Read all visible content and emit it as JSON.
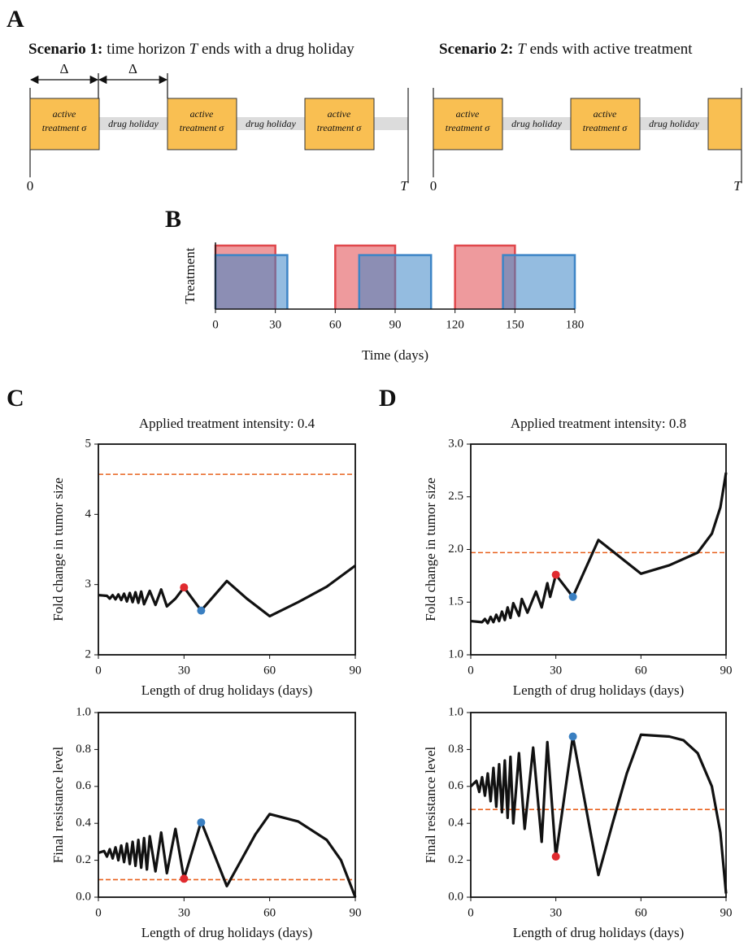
{
  "panel_labels": [
    "A",
    "B",
    "C",
    "D"
  ],
  "panel_a": {
    "scenario1": {
      "label": "Scenario 1:",
      "text": [
        "time horizon ",
        "T",
        " ends with a drug holiday"
      ]
    },
    "scenario2": {
      "label": "Scenario 2:",
      "text": [
        "T",
        " ends with active treatment"
      ]
    },
    "delta": "Δ",
    "box_lines": [
      "active",
      "treatment σ"
    ],
    "holiday": "drug holiday",
    "origin": "0",
    "horizon": "T"
  },
  "chart_data": [
    {
      "type": "interval",
      "ylabel": "Treatment",
      "xlabel": "Time (days)",
      "xlim": [
        0,
        180
      ],
      "xticks": [
        0,
        30,
        60,
        90,
        120,
        150,
        180
      ],
      "ylim": [
        0,
        1.05
      ],
      "series": [
        {
          "color": "#e0474c",
          "level": 1,
          "intervals": [
            [
              0,
              30
            ],
            [
              60,
              90
            ],
            [
              120,
              150
            ]
          ]
        },
        {
          "color": "#3d85c6",
          "level": 0.85,
          "intervals": [
            [
              0,
              36
            ],
            [
              72,
              108
            ],
            [
              144,
              180
            ]
          ]
        }
      ]
    },
    {
      "type": "line",
      "title": "Applied treatment intensity: 0.4",
      "ylabel": "Fold change in tumor size",
      "xlabel": "Length of drug holidays (days)",
      "xlim": [
        0,
        90
      ],
      "xticks": [
        0,
        30,
        60,
        90
      ],
      "ylim": [
        2,
        5
      ],
      "yticks": [
        2,
        3,
        4,
        5
      ],
      "x": [
        0,
        3,
        4,
        5,
        6,
        7,
        8,
        9,
        10,
        11,
        12,
        13,
        14,
        15,
        16,
        18,
        20,
        22,
        24,
        27,
        30,
        36,
        45,
        52,
        60,
        70,
        80,
        90
      ],
      "series": [
        {
          "color": "#111111",
          "values": [
            2.85,
            2.84,
            2.8,
            2.85,
            2.79,
            2.86,
            2.78,
            2.87,
            2.76,
            2.88,
            2.75,
            2.89,
            2.74,
            2.9,
            2.72,
            2.91,
            2.71,
            2.93,
            2.69,
            2.8,
            2.96,
            2.63,
            3.05,
            2.8,
            2.55,
            2.75,
            2.97,
            3.27
          ]
        }
      ],
      "reference_line": {
        "value": 4.57,
        "color": "#e8601c"
      },
      "markers": [
        {
          "x": 30,
          "y": 2.96,
          "color": "#e02a2f"
        },
        {
          "x": 36,
          "y": 2.63,
          "color": "#3a7fc1"
        }
      ]
    },
    {
      "type": "line",
      "ylabel": "Final resistance level",
      "xlabel": "Length of drug holidays (days)",
      "xlim": [
        0,
        90
      ],
      "xticks": [
        0,
        30,
        60,
        90
      ],
      "ylim": [
        0,
        1
      ],
      "yticks": [
        {
          "value": 0,
          "label": "0.0"
        },
        0.2,
        0.4,
        0.6,
        0.8,
        {
          "value": 1,
          "label": "1.0"
        }
      ],
      "x": [
        0,
        2,
        3,
        4,
        5,
        6,
        7,
        8,
        9,
        10,
        11,
        12,
        13,
        14,
        15,
        16,
        17,
        18,
        20,
        22,
        24,
        27,
        30,
        36,
        45,
        50,
        55,
        60,
        70,
        80,
        85,
        90
      ],
      "series": [
        {
          "color": "#111111",
          "values": [
            0.24,
            0.25,
            0.22,
            0.26,
            0.21,
            0.27,
            0.2,
            0.28,
            0.19,
            0.29,
            0.18,
            0.3,
            0.17,
            0.31,
            0.16,
            0.32,
            0.15,
            0.33,
            0.14,
            0.35,
            0.13,
            0.37,
            0.1,
            0.41,
            0.06,
            0.2,
            0.34,
            0.45,
            0.41,
            0.31,
            0.2,
            0.0
          ]
        }
      ],
      "reference_line": {
        "value": 0.095,
        "color": "#e8601c"
      },
      "markers": [
        {
          "x": 30,
          "y": 0.1,
          "color": "#e02a2f"
        },
        {
          "x": 36,
          "y": 0.405,
          "color": "#3a7fc1"
        }
      ]
    },
    {
      "type": "line",
      "title": "Applied treatment intensity: 0.8",
      "ylabel": "Fold change in tumor size",
      "xlabel": "Length of drug holidays (days)",
      "xlim": [
        0,
        90
      ],
      "xticks": [
        0,
        30,
        60,
        90
      ],
      "ylim": [
        1,
        3
      ],
      "yticks": [
        {
          "value": 1,
          "label": "1.0"
        },
        1.5,
        {
          "value": 2,
          "label": "2.0"
        },
        2.5,
        {
          "value": 3,
          "label": "3.0"
        }
      ],
      "x": [
        0,
        4,
        5,
        6,
        7,
        8,
        9,
        10,
        11,
        12,
        13,
        14,
        15,
        17,
        18,
        20,
        23,
        25,
        27,
        28,
        30,
        36,
        45,
        60,
        70,
        80,
        85,
        88,
        90
      ],
      "series": [
        {
          "color": "#111111",
          "values": [
            1.32,
            1.31,
            1.34,
            1.3,
            1.36,
            1.31,
            1.38,
            1.32,
            1.41,
            1.33,
            1.45,
            1.35,
            1.49,
            1.37,
            1.53,
            1.4,
            1.6,
            1.45,
            1.68,
            1.55,
            1.76,
            1.55,
            2.09,
            1.77,
            1.85,
            1.97,
            2.15,
            2.4,
            2.73
          ]
        }
      ],
      "reference_line": {
        "value": 1.97,
        "color": "#e8601c"
      },
      "markers": [
        {
          "x": 30,
          "y": 1.76,
          "color": "#e02a2f"
        },
        {
          "x": 36,
          "y": 1.55,
          "color": "#3a7fc1"
        }
      ]
    },
    {
      "type": "line",
      "ylabel": "Final resistance level",
      "xlabel": "Length of drug holidays (days)",
      "xlim": [
        0,
        90
      ],
      "xticks": [
        0,
        30,
        60,
        90
      ],
      "ylim": [
        0,
        1
      ],
      "yticks": [
        {
          "value": 0,
          "label": "0.0"
        },
        0.2,
        0.4,
        0.6,
        0.8,
        {
          "value": 1,
          "label": "1.0"
        }
      ],
      "x": [
        0,
        2,
        3,
        4,
        5,
        6,
        7,
        8,
        9,
        10,
        11,
        12,
        13,
        14,
        15,
        17,
        19,
        22,
        25,
        27,
        30,
        36,
        45,
        50,
        55,
        60,
        70,
        75,
        80,
        85,
        88,
        90
      ],
      "series": [
        {
          "color": "#111111",
          "values": [
            0.6,
            0.63,
            0.57,
            0.65,
            0.55,
            0.67,
            0.52,
            0.7,
            0.49,
            0.72,
            0.46,
            0.74,
            0.43,
            0.76,
            0.4,
            0.78,
            0.37,
            0.81,
            0.3,
            0.84,
            0.22,
            0.87,
            0.12,
            0.4,
            0.67,
            0.88,
            0.87,
            0.85,
            0.78,
            0.6,
            0.35,
            0.02
          ]
        }
      ],
      "reference_line": {
        "value": 0.475,
        "color": "#e8601c"
      },
      "markers": [
        {
          "x": 30,
          "y": 0.22,
          "color": "#e02a2f"
        },
        {
          "x": 36,
          "y": 0.87,
          "color": "#3a7fc1"
        }
      ]
    }
  ]
}
